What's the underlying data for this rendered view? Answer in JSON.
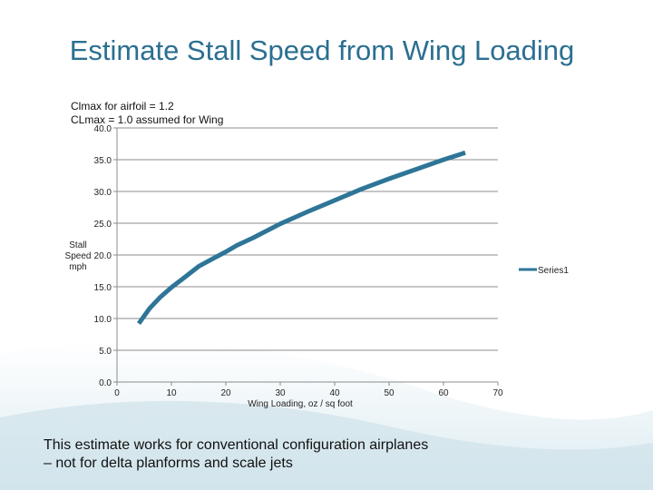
{
  "slide": {
    "title": "Estimate Stall Speed from Wing Loading",
    "notes": [
      "Clmax for airfoil = 1.2",
      "CLmax = 1.0 assumed for Wing"
    ],
    "caption_lines": [
      "This estimate works for conventional configuration airplanes",
      "– not for delta planforms and scale jets"
    ],
    "colors": {
      "title": "#2b6f91",
      "series": "#2e7597",
      "grid": "#8c8c8c",
      "wave": "#c9dfe8"
    }
  },
  "chart_data": {
    "type": "line",
    "title": "",
    "xlabel": "Wing Loading, oz / sq foot",
    "ylabel_lines": [
      "Stall",
      "Speed",
      "mph"
    ],
    "xlim": [
      0,
      70
    ],
    "ylim": [
      0,
      40
    ],
    "xticks": [
      0,
      10,
      20,
      30,
      40,
      50,
      60,
      70
    ],
    "yticks": [
      0,
      5,
      10,
      15,
      20,
      25,
      30,
      35,
      40
    ],
    "ytick_labels": [
      "0.0",
      "5.0",
      "10.0",
      "15.0",
      "20.0",
      "25.0",
      "30.0",
      "35.0",
      "40.0"
    ],
    "grid": true,
    "legend": "right",
    "series": [
      {
        "name": "Series1",
        "x": [
          4,
          5,
          6,
          8,
          10,
          12,
          15,
          18,
          20,
          22,
          25,
          30,
          35,
          40,
          45,
          50,
          55,
          60,
          64
        ],
        "y": [
          9.2,
          10.4,
          11.6,
          13.4,
          14.9,
          16.2,
          18.2,
          19.6,
          20.5,
          21.5,
          22.7,
          24.9,
          26.8,
          28.6,
          30.4,
          32.0,
          33.5,
          35.0,
          36.1
        ]
      }
    ]
  }
}
